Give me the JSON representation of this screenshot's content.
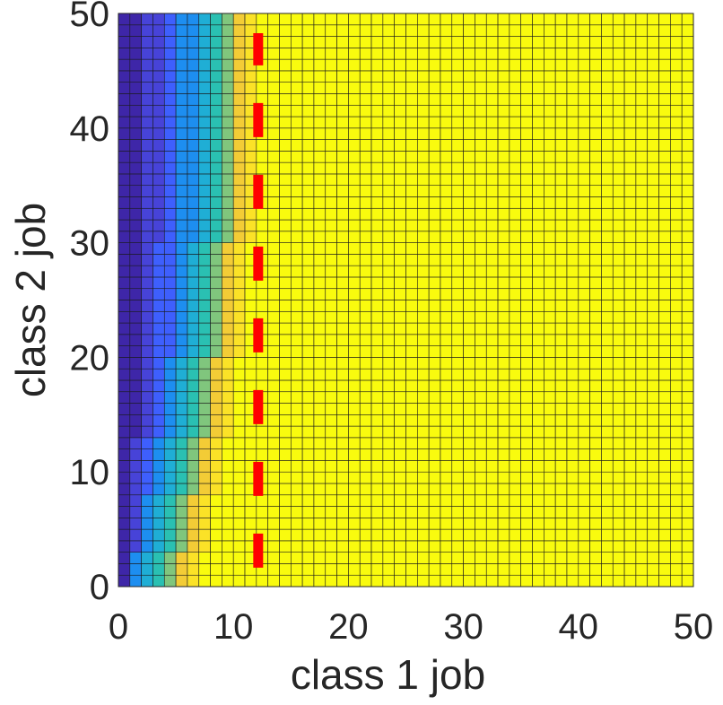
{
  "chart_data": {
    "type": "heatmap",
    "title": "",
    "xlabel": "class 1 job",
    "ylabel": "class 2 job",
    "xlim": [
      0,
      50
    ],
    "ylim": [
      0,
      50
    ],
    "xticks": [
      "0",
      "10",
      "20",
      "30",
      "40",
      "50"
    ],
    "yticks": [
      "0",
      "10",
      "20",
      "30",
      "40",
      "50"
    ],
    "grid_cells": [
      50,
      50
    ],
    "colormap": [
      "#3e26a8",
      "#4743d8",
      "#3e5ffd",
      "#1d8ef0",
      "#1faed5",
      "#2ac0b2",
      "#80c67d",
      "#dabc41",
      "#f3cc36",
      "#fbe227",
      "#f9fb0e"
    ],
    "boundary_description": "class 1 job at which cells become yellow rises from about 7 at class 2 job 0 to about 12 at class 2 job 40-50",
    "boundary_start_x": [
      7,
      7,
      7,
      8,
      8,
      8,
      8,
      8,
      9,
      9,
      9,
      9,
      9,
      10,
      10,
      10,
      10,
      10,
      10,
      10,
      11,
      11,
      11,
      11,
      11,
      11,
      11,
      11,
      11,
      11,
      12,
      12,
      12,
      12,
      12,
      12,
      12,
      12,
      12,
      12,
      12,
      12,
      12,
      12,
      12,
      12,
      12,
      12,
      12,
      12
    ],
    "threshold_line": {
      "x": 12,
      "y_range": [
        1.5,
        50
      ],
      "style": "dashed",
      "color": "#ff0000"
    }
  }
}
